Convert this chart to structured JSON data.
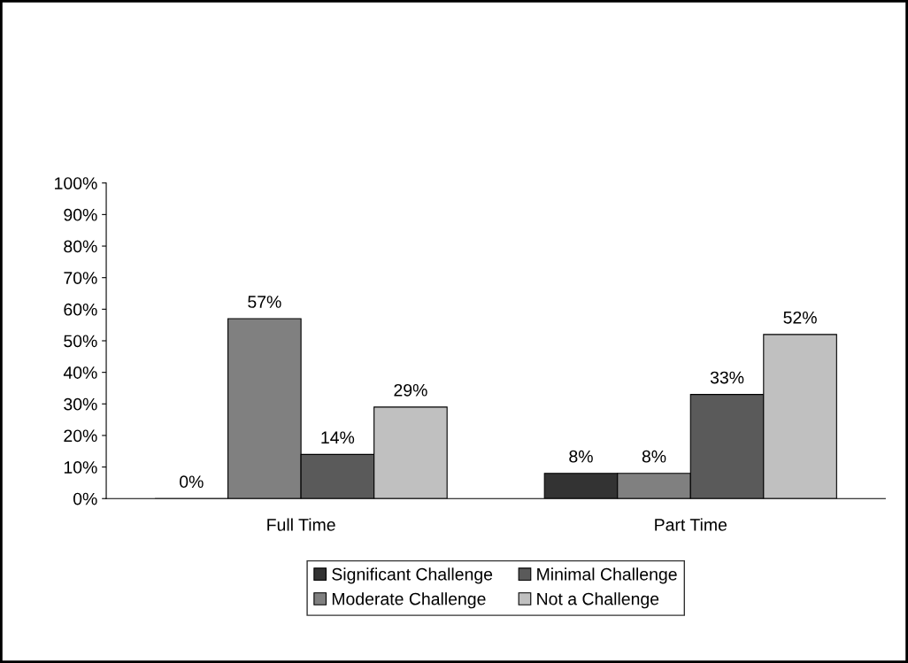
{
  "chart_data": {
    "type": "bar",
    "categories": [
      "Full Time",
      "Part Time"
    ],
    "series": [
      {
        "name": "Significant Challenge",
        "color": "#333333",
        "values": [
          0,
          8
        ]
      },
      {
        "name": "Moderate Challenge",
        "color": "#808080",
        "values": [
          57,
          8
        ]
      },
      {
        "name": "Minimal Challenge",
        "color": "#5a5a5a",
        "values": [
          14,
          33
        ]
      },
      {
        "name": "Not a Challenge",
        "color": "#c0c0c0",
        "values": [
          29,
          52
        ]
      }
    ],
    "ylim": [
      0,
      100
    ],
    "yticks": [
      {
        "value": 0,
        "label": "0%"
      },
      {
        "value": 10,
        "label": "10%"
      },
      {
        "value": 20,
        "label": "20%"
      },
      {
        "value": 30,
        "label": "30%"
      },
      {
        "value": 40,
        "label": "40%"
      },
      {
        "value": 50,
        "label": "50%"
      },
      {
        "value": 60,
        "label": "60%"
      },
      {
        "value": 70,
        "label": "70%"
      },
      {
        "value": 80,
        "label": "80%"
      },
      {
        "value": 90,
        "label": "90%"
      },
      {
        "value": 100,
        "label": "100%"
      }
    ],
    "value_labels": [
      [
        "0%",
        "8%"
      ],
      [
        "57%",
        "8%"
      ],
      [
        "14%",
        "33%"
      ],
      [
        "29%",
        "52%"
      ]
    ],
    "grid": false,
    "legend": "bottom"
  }
}
